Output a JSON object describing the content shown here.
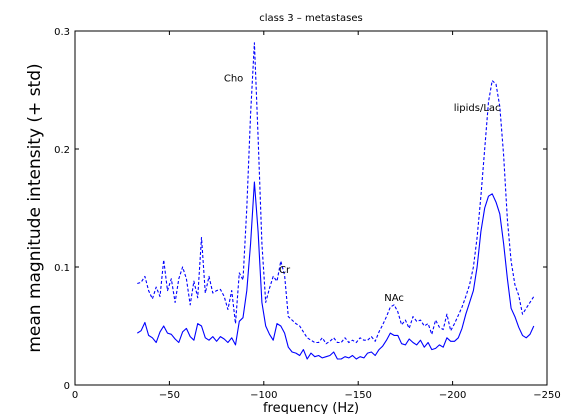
{
  "chart_data": {
    "type": "line",
    "title": "class 3 – metastases",
    "xlabel": "frequency (Hz)",
    "ylabel": "mean magnitude intensity (+ std)",
    "xlim": [
      0,
      -250
    ],
    "ylim": [
      0,
      0.3
    ],
    "x_axis_reversed": true,
    "grid": false,
    "legend": "none",
    "xticks": [
      0,
      -50,
      -100,
      -150,
      -200,
      -250
    ],
    "xtick_labels": [
      "0",
      "−50",
      "−100",
      "−150",
      "−200",
      "−250"
    ],
    "yticks": [
      0,
      0.1,
      0.2,
      0.3
    ],
    "ytick_labels": [
      "0",
      "0.1",
      "0.2",
      "0.3"
    ],
    "annotations": [
      {
        "text": "Cho",
        "x": -84,
        "y": 0.257
      },
      {
        "text": "Cr",
        "x": -111,
        "y": 0.095
      },
      {
        "text": "NAc",
        "x": -169,
        "y": 0.071
      },
      {
        "text": "lipids/Lac",
        "x": -213,
        "y": 0.232
      }
    ],
    "series": [
      {
        "style": "dashed",
        "color": "#0000ff",
        "x": [
          -33,
          -35,
          -37,
          -39,
          -41,
          -43,
          -45,
          -47,
          -49,
          -51,
          -53,
          -55,
          -57,
          -59,
          -61,
          -63,
          -65,
          -67,
          -69,
          -71,
          -73,
          -75,
          -77,
          -79,
          -81,
          -83,
          -85,
          -87,
          -89,
          -91,
          -93,
          -95,
          -97,
          -99,
          -101,
          -103,
          -105,
          -107,
          -109,
          -111,
          -113,
          -115,
          -117,
          -119,
          -121,
          -123,
          -125,
          -127,
          -129,
          -131,
          -133,
          -135,
          -137,
          -139,
          -141,
          -143,
          -145,
          -147,
          -149,
          -151,
          -153,
          -155,
          -157,
          -159,
          -161,
          -163,
          -165,
          -167,
          -169,
          -171,
          -173,
          -175,
          -177,
          -179,
          -181,
          -183,
          -185,
          -187,
          -189,
          -191,
          -193,
          -195,
          -197,
          -199,
          -201,
          -203,
          -205,
          -207,
          -209,
          -211,
          -213,
          -215,
          -217,
          -219,
          -221,
          -223,
          -225,
          -227,
          -229,
          -231,
          -233,
          -235,
          -237,
          -239,
          -241,
          -243
        ],
        "y": [
          0.086,
          0.087,
          0.092,
          0.08,
          0.073,
          0.083,
          0.075,
          0.106,
          0.08,
          0.09,
          0.07,
          0.09,
          0.1,
          0.09,
          0.068,
          0.088,
          0.074,
          0.125,
          0.078,
          0.092,
          0.078,
          0.08,
          0.081,
          0.075,
          0.064,
          0.08,
          0.052,
          0.095,
          0.089,
          0.15,
          0.23,
          0.29,
          0.21,
          0.12,
          0.07,
          0.082,
          0.092,
          0.088,
          0.105,
          0.093,
          0.058,
          0.055,
          0.052,
          0.05,
          0.045,
          0.04,
          0.038,
          0.036,
          0.036,
          0.04,
          0.035,
          0.037,
          0.04,
          0.036,
          0.036,
          0.04,
          0.036,
          0.038,
          0.036,
          0.04,
          0.038,
          0.038,
          0.041,
          0.037,
          0.045,
          0.051,
          0.058,
          0.066,
          0.068,
          0.062,
          0.051,
          0.055,
          0.048,
          0.058,
          0.054,
          0.055,
          0.05,
          0.052,
          0.043,
          0.055,
          0.049,
          0.047,
          0.06,
          0.046,
          0.052,
          0.059,
          0.066,
          0.075,
          0.085,
          0.1,
          0.125,
          0.16,
          0.2,
          0.24,
          0.258,
          0.255,
          0.236,
          0.195,
          0.14,
          0.105,
          0.085,
          0.076,
          0.06,
          0.065,
          0.07,
          0.075
        ]
      },
      {
        "style": "solid",
        "color": "#0000ff",
        "x": [
          -33,
          -35,
          -37,
          -39,
          -41,
          -43,
          -45,
          -47,
          -49,
          -51,
          -53,
          -55,
          -57,
          -59,
          -61,
          -63,
          -65,
          -67,
          -69,
          -71,
          -73,
          -75,
          -77,
          -79,
          -81,
          -83,
          -85,
          -87,
          -89,
          -91,
          -93,
          -95,
          -97,
          -99,
          -101,
          -103,
          -105,
          -107,
          -109,
          -111,
          -113,
          -115,
          -117,
          -119,
          -121,
          -123,
          -125,
          -127,
          -129,
          -131,
          -133,
          -135,
          -137,
          -139,
          -141,
          -143,
          -145,
          -147,
          -149,
          -151,
          -153,
          -155,
          -157,
          -159,
          -161,
          -163,
          -165,
          -167,
          -169,
          -171,
          -173,
          -175,
          -177,
          -179,
          -181,
          -183,
          -185,
          -187,
          -189,
          -191,
          -193,
          -195,
          -197,
          -199,
          -201,
          -203,
          -205,
          -207,
          -209,
          -211,
          -213,
          -215,
          -217,
          -219,
          -221,
          -223,
          -225,
          -227,
          -229,
          -231,
          -233,
          -235,
          -237,
          -239,
          -241,
          -243
        ],
        "y": [
          0.044,
          0.046,
          0.053,
          0.042,
          0.04,
          0.036,
          0.045,
          0.05,
          0.044,
          0.043,
          0.039,
          0.036,
          0.045,
          0.048,
          0.041,
          0.038,
          0.052,
          0.05,
          0.04,
          0.038,
          0.041,
          0.037,
          0.041,
          0.039,
          0.036,
          0.04,
          0.034,
          0.054,
          0.057,
          0.08,
          0.12,
          0.172,
          0.13,
          0.07,
          0.05,
          0.043,
          0.038,
          0.052,
          0.05,
          0.044,
          0.032,
          0.028,
          0.027,
          0.025,
          0.03,
          0.022,
          0.027,
          0.024,
          0.025,
          0.023,
          0.024,
          0.025,
          0.028,
          0.022,
          0.022,
          0.024,
          0.023,
          0.025,
          0.022,
          0.024,
          0.023,
          0.027,
          0.028,
          0.025,
          0.03,
          0.033,
          0.038,
          0.044,
          0.042,
          0.042,
          0.035,
          0.034,
          0.039,
          0.036,
          0.034,
          0.038,
          0.032,
          0.036,
          0.03,
          0.031,
          0.034,
          0.032,
          0.04,
          0.037,
          0.037,
          0.04,
          0.048,
          0.06,
          0.07,
          0.08,
          0.1,
          0.13,
          0.15,
          0.16,
          0.162,
          0.155,
          0.145,
          0.12,
          0.09,
          0.065,
          0.058,
          0.049,
          0.042,
          0.04,
          0.043,
          0.05
        ]
      }
    ]
  }
}
